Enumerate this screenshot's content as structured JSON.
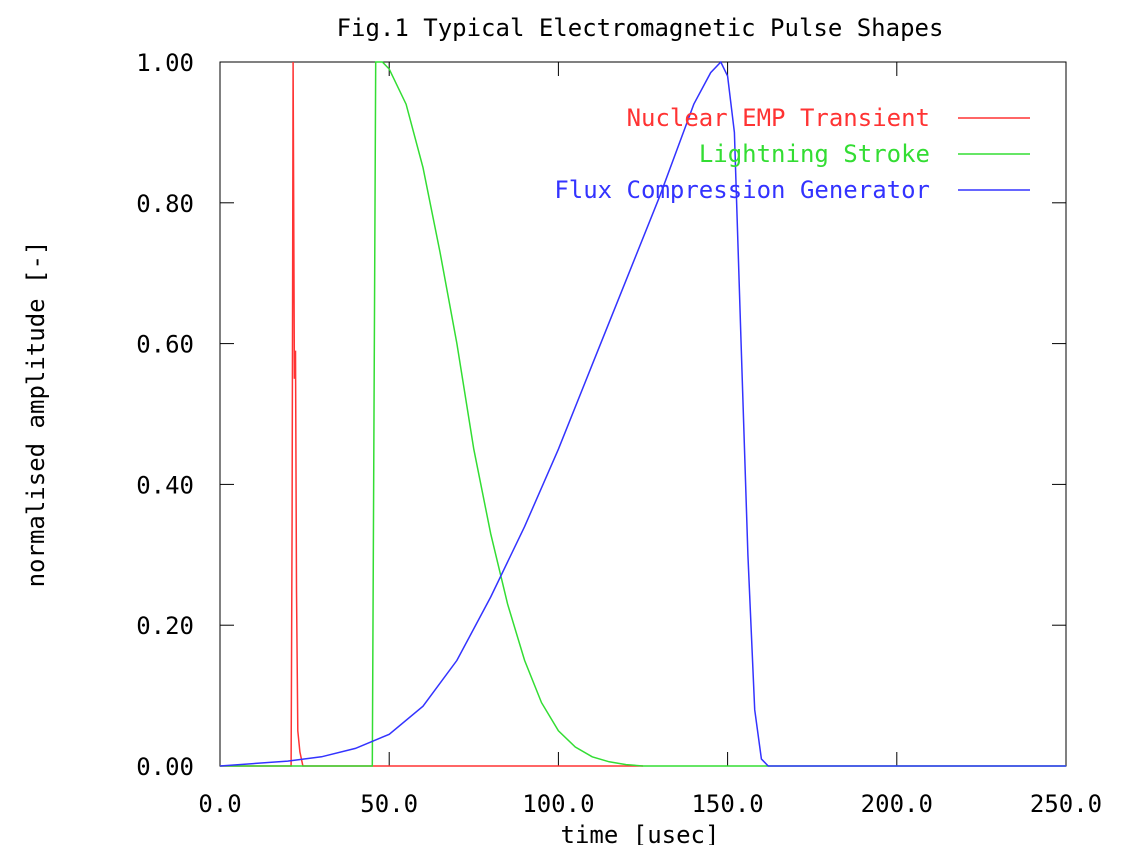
{
  "chart_data": {
    "type": "line",
    "title": "Fig.1 Typical Electromagnetic Pulse Shapes",
    "xlabel": "time [usec]",
    "ylabel": "normalised amplitude [-]",
    "xlim": [
      0,
      250
    ],
    "ylim": [
      0,
      1
    ],
    "x_ticks": [
      "0.0",
      "50.0",
      "100.0",
      "150.0",
      "200.0",
      "250.0"
    ],
    "y_ticks": [
      "0.00",
      "0.20",
      "0.40",
      "0.60",
      "0.80",
      "1.00"
    ],
    "grid": false,
    "legend_position": "top-right",
    "series": [
      {
        "name": "Nuclear EMP Transient",
        "color": "#ff3333",
        "x": [
          0,
          20,
          21,
          21.3,
          21.6,
          22.0,
          22.3,
          22.6,
          23.0,
          23.6,
          24.5,
          125
        ],
        "y": [
          0,
          0,
          0,
          0.35,
          1.0,
          0.55,
          0.59,
          0.25,
          0.05,
          0.02,
          0,
          0
        ]
      },
      {
        "name": "Lightning Stroke",
        "color": "#33dd33",
        "x": [
          0,
          45,
          45.5,
          46,
          48,
          50,
          55,
          60,
          65,
          70,
          75,
          80,
          85,
          90,
          95,
          100,
          105,
          110,
          115,
          120,
          125,
          250
        ],
        "y": [
          0,
          0,
          0.5,
          1.0,
          1.0,
          0.99,
          0.94,
          0.85,
          0.73,
          0.6,
          0.45,
          0.33,
          0.23,
          0.15,
          0.09,
          0.05,
          0.027,
          0.013,
          0.006,
          0.002,
          0,
          0
        ]
      },
      {
        "name": "Flux Compression Generator",
        "color": "#3333ff",
        "x": [
          0,
          20,
          30,
          40,
          50,
          60,
          70,
          80,
          90,
          100,
          110,
          120,
          130,
          140,
          145,
          148,
          150,
          152,
          154,
          156,
          158,
          160,
          162,
          170,
          250
        ],
        "y": [
          0,
          0.007,
          0.013,
          0.025,
          0.045,
          0.085,
          0.15,
          0.24,
          0.34,
          0.45,
          0.57,
          0.69,
          0.81,
          0.94,
          0.985,
          1.0,
          0.98,
          0.9,
          0.6,
          0.3,
          0.08,
          0.01,
          0,
          0,
          0
        ]
      }
    ]
  }
}
